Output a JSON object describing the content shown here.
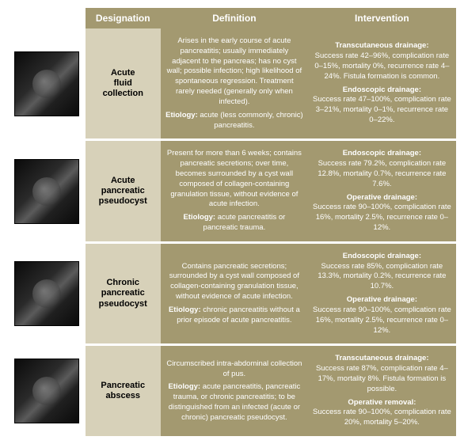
{
  "headers": {
    "designation": "Designation",
    "definition": "Definition",
    "intervention": "Intervention"
  },
  "rows": [
    {
      "designation": "Acute\nfluid\ncollection",
      "def_main": "Arises in the early course of acute pancreatitis; usually immediately adjacent to the pancreas; has no cyst wall; possible infection; high likelihood of spontaneous regression. Treatment rarely needed (generally only when infected).",
      "def_et_label": "Etiology:",
      "def_et_text": " acute (less commonly, chronic) pancreatitis.",
      "int1_label": "Transcutaneous drainage:",
      "int1_text": "Success rate 42–96%, complication rate 0–15%, mortality 0%, recurrence rate 4–24%. Fistula formation is common.",
      "int2_label": "Endoscopic drainage:",
      "int2_text": "Success rate 47–100%, complication rate 3–21%, mortality 0–1%, recurrence rate 0–22%."
    },
    {
      "designation": "Acute\npancreatic\npseudocyst",
      "def_main": "Present for more than 6 weeks; contains pancreatic secretions; over time, becomes surrounded by a cyst wall composed of collagen-containing granulation tissue, without evidence of acute infection.",
      "def_et_label": "Etiology:",
      "def_et_text": " acute pancreatitis or pancreatic trauma.",
      "int1_label": "Endoscopic drainage:",
      "int1_text": "Success rate 79.2%, complication rate 12.8%, mortality 0.7%, recurrence rate 7.6%.",
      "int2_label": "Operative drainage:",
      "int2_text": "Success rate 90–100%, complication rate 16%, mortality 2.5%, recurrence rate 0–12%."
    },
    {
      "designation": "Chronic\npancreatic\npseudocyst",
      "def_main": "Contains pancreatic secretions; surrounded by a cyst wall composed of collagen-containing granulation tissue, without evidence of acute infection.",
      "def_et_label": "Etiology:",
      "def_et_text": " chronic pancreatitis without a prior episode of acute pancreatitis.",
      "int1_label": "Endoscopic drainage:",
      "int1_text": "Success rate 85%, complication rate 13.3%, mortality 0.2%, recurrence rate 10.7%.",
      "int2_label": "Operative drainage:",
      "int2_text": "Success rate 90–100%, complication rate 16%, mortality 2.5%, recurrence rate 0–12%."
    },
    {
      "designation": "Pancreatic\nabscess",
      "def_main": "Circumscribed intra-abdominal collection of pus.",
      "def_et_label": "Etiology:",
      "def_et_text": " acute pancreatitis, pancreatic trauma, or chronic pancreatitis; to be distinguished from an infected (acute or chronic) pancreatic pseudocyst.",
      "int1_label": "Transcutaneous drainage:",
      "int1_text": "Success rate 87%, complication rate 4–17%, mortality 8%. Fistula formation is possible.",
      "int2_label": "Operative removal:",
      "int2_text": "Success rate 90–100%, complication rate 20%, mortality 5–20%."
    }
  ]
}
